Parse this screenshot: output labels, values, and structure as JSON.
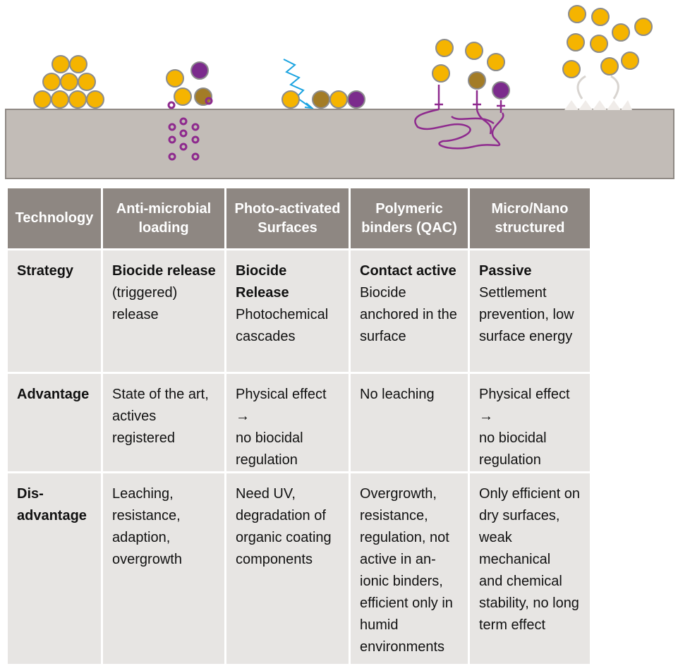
{
  "table": {
    "header": [
      [
        "Technology"
      ],
      [
        "Anti-microbial",
        "loading"
      ],
      [
        "Photo-activated",
        "Surfaces"
      ],
      [
        "Polymeric",
        "binders (QAC)"
      ],
      [
        "Micro/Nano",
        "structured"
      ]
    ],
    "rows": [
      {
        "label": [
          "Strategy"
        ],
        "cells": [
          {
            "heading": "Biocide release",
            "lines": [
              "(triggered)",
              "release"
            ]
          },
          {
            "heading": "Biocide Release",
            "lines": [
              "Photochemical",
              "cascades"
            ]
          },
          {
            "heading": "Contact active",
            "lines": [
              "Biocide",
              "anchored in the",
              "surface"
            ]
          },
          {
            "heading": "Passive",
            "lines": [
              "Settlement",
              "prevention, low",
              "surface energy"
            ]
          }
        ]
      },
      {
        "label": [
          "Advantage"
        ],
        "cells": [
          {
            "lines": [
              "State of the art,",
              "actives",
              "registered"
            ]
          },
          {
            "lines": [
              "Physical effect →",
              "no biocidal",
              "regulation"
            ]
          },
          {
            "lines": [
              "No leaching"
            ]
          },
          {
            "lines": [
              "Physical effect →",
              "no biocidal",
              "regulation"
            ]
          }
        ]
      },
      {
        "label": [
          "Dis-",
          "advantage"
        ],
        "cells": [
          {
            "lines": [
              "Leaching,",
              "resistance,",
              "adaption,",
              "overgrowth"
            ]
          },
          {
            "lines": [
              "Need UV,",
              "degradation of",
              "organic coating",
              "components"
            ]
          },
          {
            "lines": [
              "Overgrowth,",
              "resistance,",
              "regulation, not",
              "active in an-",
              "ionic binders,",
              "efficient only in",
              "humid",
              "environments"
            ]
          },
          {
            "lines": [
              "Only efficient on",
              "dry surfaces,",
              "weak mechanical",
              "and chemical",
              "stability, no long",
              "term effect"
            ]
          }
        ]
      }
    ]
  }
}
